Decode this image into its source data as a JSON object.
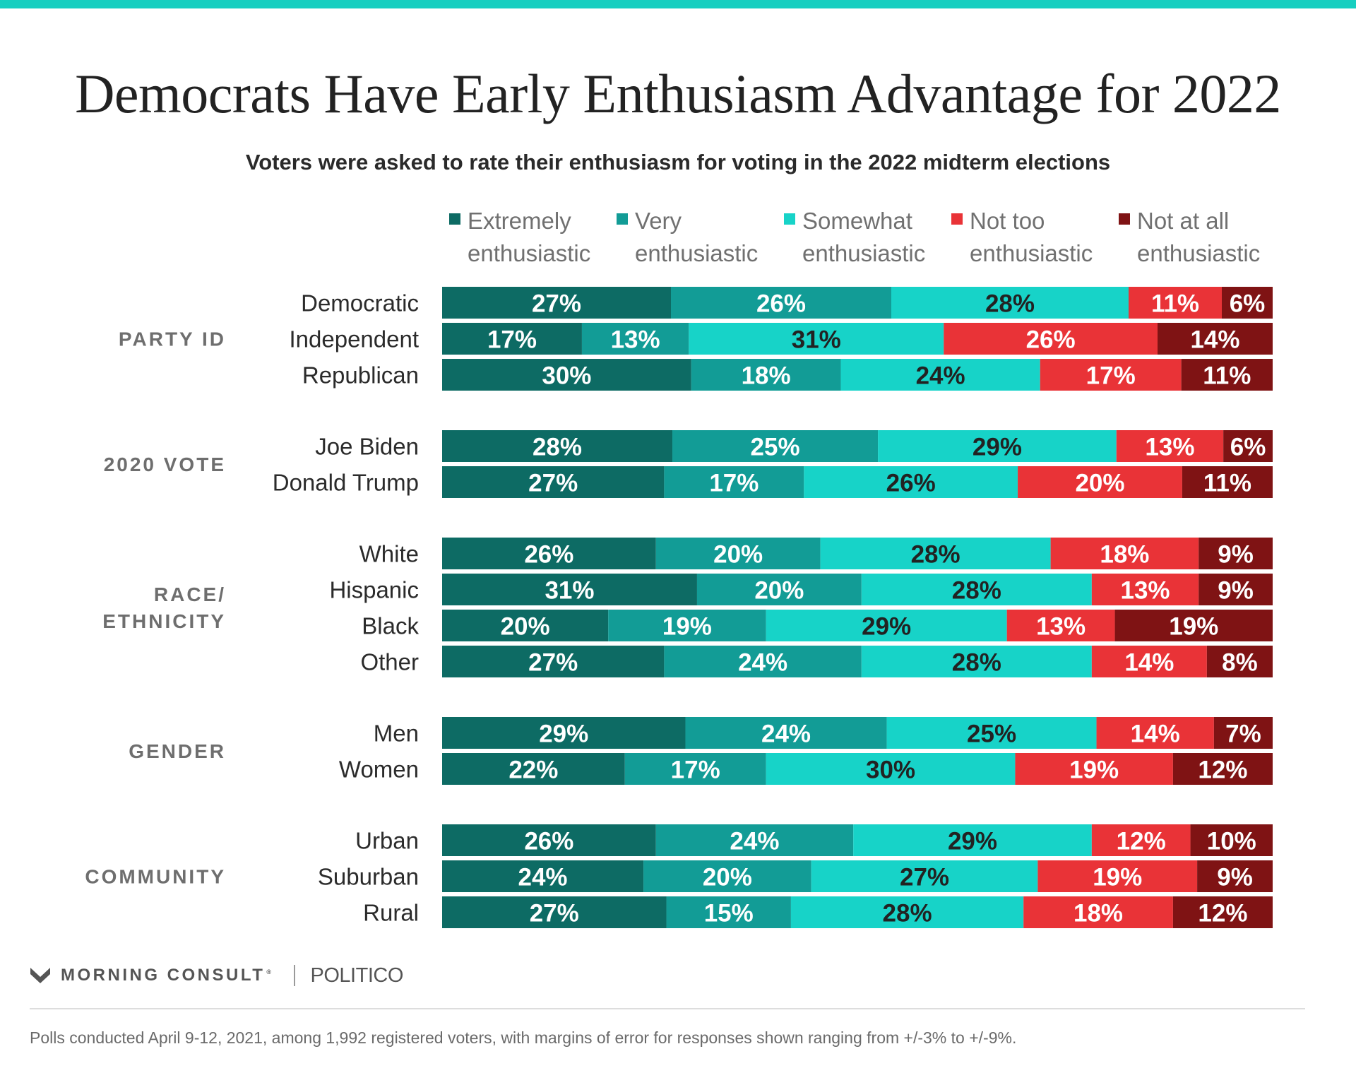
{
  "title": "Democrats Have Early Enthusiasm Advantage for 2022",
  "subtitle": "Voters were asked to rate their enthusiasm for voting in the 2022 midterm elections",
  "footer": {
    "brand": "MORNING CONSULT",
    "brand_mark": "®",
    "partner": "POLITICO",
    "note": "Polls conducted April 9-12, 2021, among 1,992 registered voters, with margins of error for responses shown ranging from +/-3% to +/-9%."
  },
  "colors": {
    "top_rule": "#17cfc0",
    "label_dark": "#222222",
    "label_light": "#ffffff"
  },
  "chart_data": {
    "type": "bar",
    "orientation": "horizontal",
    "stacked": true,
    "percent_scale": true,
    "legend_position": "top",
    "series": [
      {
        "name": [
          "Extremely",
          "enthusiastic"
        ],
        "color": "#0d6b64"
      },
      {
        "name": [
          "Very",
          "enthusiastic"
        ],
        "color": "#129c96"
      },
      {
        "name": [
          "Somewhat",
          "enthusiastic"
        ],
        "color": "#17d3c8"
      },
      {
        "name": [
          "Not too",
          "enthusiastic"
        ],
        "color": "#e93337"
      },
      {
        "name": [
          "Not at all",
          "enthusiastic"
        ],
        "color": "#7f1314"
      }
    ],
    "groups": [
      {
        "label": [
          "PARTY ID"
        ],
        "rows": [
          {
            "label": "Democratic",
            "values": [
              27,
              26,
              28,
              11,
              6
            ]
          },
          {
            "label": "Independent",
            "values": [
              17,
              13,
              31,
              26,
              14
            ]
          },
          {
            "label": "Republican",
            "values": [
              30,
              18,
              24,
              17,
              11
            ]
          }
        ]
      },
      {
        "label": [
          "2020 VOTE"
        ],
        "rows": [
          {
            "label": "Joe Biden",
            "values": [
              28,
              25,
              29,
              13,
              6
            ]
          },
          {
            "label": "Donald Trump",
            "values": [
              27,
              17,
              26,
              20,
              11
            ]
          }
        ]
      },
      {
        "label": [
          "RACE/",
          "ETHNICITY"
        ],
        "rows": [
          {
            "label": "White",
            "values": [
              26,
              20,
              28,
              18,
              9
            ]
          },
          {
            "label": "Hispanic",
            "values": [
              31,
              20,
              28,
              13,
              9
            ]
          },
          {
            "label": "Black",
            "values": [
              20,
              19,
              29,
              13,
              19
            ]
          },
          {
            "label": "Other",
            "values": [
              27,
              24,
              28,
              14,
              8
            ]
          }
        ]
      },
      {
        "label": [
          "GENDER"
        ],
        "rows": [
          {
            "label": "Men",
            "values": [
              29,
              24,
              25,
              14,
              7
            ]
          },
          {
            "label": "Women",
            "values": [
              22,
              17,
              30,
              19,
              12
            ]
          }
        ]
      },
      {
        "label": [
          "COMMUNITY"
        ],
        "rows": [
          {
            "label": "Urban",
            "values": [
              26,
              24,
              29,
              12,
              10
            ]
          },
          {
            "label": "Suburban",
            "values": [
              24,
              20,
              27,
              19,
              9
            ]
          },
          {
            "label": "Rural",
            "values": [
              27,
              15,
              28,
              18,
              12
            ]
          }
        ]
      }
    ]
  }
}
